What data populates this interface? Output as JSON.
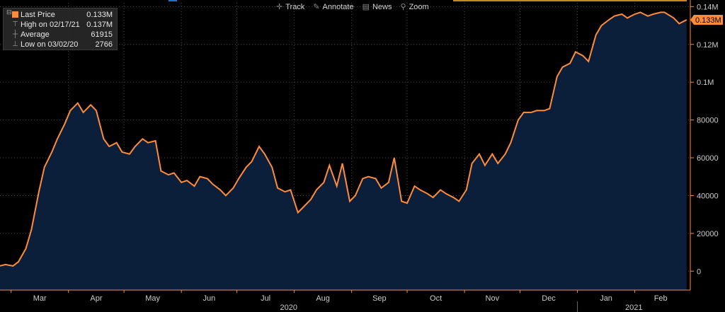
{
  "toolbar": {
    "track_label": "Track",
    "annotate_label": "Annotate",
    "news_label": "News",
    "zoom_label": "Zoom"
  },
  "legend": {
    "items": [
      {
        "label": "Last Price",
        "value": "0.133M"
      },
      {
        "label": "High on 02/17/21",
        "value": "0.137M"
      },
      {
        "label": "Average",
        "value": "61915"
      },
      {
        "label": "Low on 03/02/20",
        "value": "2766"
      }
    ]
  },
  "colors": {
    "line": "#ff8c3a",
    "fill": "#0b1f3a",
    "grid": "#4a4a4a",
    "axis_text": "#cccccc",
    "last_price_tag": "#ff8c3a",
    "background": "#000000"
  },
  "chart_data": {
    "type": "area",
    "title": "",
    "xlabel": "",
    "ylabel": "",
    "ylim": [
      -10000,
      142000
    ],
    "y_ticks": [
      {
        "value": 0,
        "label": "0"
      },
      {
        "value": 20000,
        "label": "20000"
      },
      {
        "value": 40000,
        "label": "40000"
      },
      {
        "value": 60000,
        "label": "60000"
      },
      {
        "value": 80000,
        "label": "80000"
      },
      {
        "value": 100000,
        "label": "0.1M"
      },
      {
        "value": 120000,
        "label": "0.12M"
      },
      {
        "value": 140000,
        "label": "0.14M"
      }
    ],
    "x_ticks": [
      "Mar",
      "Apr",
      "May",
      "Jun",
      "Jul",
      "Aug",
      "Sep",
      "Oct",
      "Nov",
      "Dec",
      "Jan",
      "Feb"
    ],
    "year_labels": [
      "2020",
      "2021"
    ],
    "last_price_label": "0.133M",
    "last_value": 133000,
    "series": [
      {
        "points": [
          [
            "2020-02-24",
            2800
          ],
          [
            "2020-02-27",
            3500
          ],
          [
            "2020-03-02",
            2766
          ],
          [
            "2020-03-05",
            5000
          ],
          [
            "2020-03-09",
            12000
          ],
          [
            "2020-03-12",
            22000
          ],
          [
            "2020-03-16",
            42000
          ],
          [
            "2020-03-19",
            55000
          ],
          [
            "2020-03-23",
            63000
          ],
          [
            "2020-03-26",
            70000
          ],
          [
            "2020-03-30",
            78000
          ],
          [
            "2020-04-02",
            85000
          ],
          [
            "2020-04-06",
            89000
          ],
          [
            "2020-04-09",
            84000
          ],
          [
            "2020-04-13",
            88000
          ],
          [
            "2020-04-16",
            85000
          ],
          [
            "2020-04-20",
            70000
          ],
          [
            "2020-04-23",
            66000
          ],
          [
            "2020-04-27",
            68000
          ],
          [
            "2020-04-30",
            63000
          ],
          [
            "2020-05-04",
            62000
          ],
          [
            "2020-05-07",
            66000
          ],
          [
            "2020-05-11",
            70000
          ],
          [
            "2020-05-14",
            68000
          ],
          [
            "2020-05-18",
            69000
          ],
          [
            "2020-05-21",
            53000
          ],
          [
            "2020-05-25",
            51000
          ],
          [
            "2020-05-28",
            52000
          ],
          [
            "2020-06-01",
            47000
          ],
          [
            "2020-06-04",
            48000
          ],
          [
            "2020-06-08",
            45000
          ],
          [
            "2020-06-11",
            50000
          ],
          [
            "2020-06-15",
            49000
          ],
          [
            "2020-06-18",
            46000
          ],
          [
            "2020-06-22",
            43000
          ],
          [
            "2020-06-25",
            40000
          ],
          [
            "2020-06-29",
            44000
          ],
          [
            "2020-07-02",
            49000
          ],
          [
            "2020-07-06",
            55000
          ],
          [
            "2020-07-09",
            58000
          ],
          [
            "2020-07-13",
            66000
          ],
          [
            "2020-07-16",
            62000
          ],
          [
            "2020-07-20",
            55000
          ],
          [
            "2020-07-23",
            44000
          ],
          [
            "2020-07-27",
            42000
          ],
          [
            "2020-07-30",
            43000
          ],
          [
            "2020-08-03",
            31000
          ],
          [
            "2020-08-06",
            34000
          ],
          [
            "2020-08-10",
            38000
          ],
          [
            "2020-08-13",
            43000
          ],
          [
            "2020-08-17",
            47000
          ],
          [
            "2020-08-20",
            56000
          ],
          [
            "2020-08-24",
            45000
          ],
          [
            "2020-08-27",
            57000
          ],
          [
            "2020-08-31",
            37000
          ],
          [
            "2020-09-03",
            40000
          ],
          [
            "2020-09-07",
            49000
          ],
          [
            "2020-09-10",
            50000
          ],
          [
            "2020-09-14",
            49000
          ],
          [
            "2020-09-17",
            44000
          ],
          [
            "2020-09-21",
            47000
          ],
          [
            "2020-09-24",
            60000
          ],
          [
            "2020-09-28",
            37000
          ],
          [
            "2020-10-01",
            36000
          ],
          [
            "2020-10-05",
            45000
          ],
          [
            "2020-10-08",
            43000
          ],
          [
            "2020-10-12",
            41000
          ],
          [
            "2020-10-15",
            39000
          ],
          [
            "2020-10-19",
            43000
          ],
          [
            "2020-10-22",
            41000
          ],
          [
            "2020-10-26",
            39000
          ],
          [
            "2020-10-29",
            37000
          ],
          [
            "2020-11-02",
            43000
          ],
          [
            "2020-11-05",
            57000
          ],
          [
            "2020-11-09",
            62000
          ],
          [
            "2020-11-12",
            56000
          ],
          [
            "2020-11-16",
            62000
          ],
          [
            "2020-11-19",
            57000
          ],
          [
            "2020-11-23",
            62000
          ],
          [
            "2020-11-26",
            68000
          ],
          [
            "2020-11-30",
            80000
          ],
          [
            "2020-12-03",
            84000
          ],
          [
            "2020-12-07",
            84000
          ],
          [
            "2020-12-10",
            85000
          ],
          [
            "2020-12-14",
            85000
          ],
          [
            "2020-12-17",
            86000
          ],
          [
            "2020-12-21",
            103000
          ],
          [
            "2020-12-24",
            108000
          ],
          [
            "2020-12-28",
            110000
          ],
          [
            "2020-12-31",
            116000
          ],
          [
            "2021-01-04",
            114000
          ],
          [
            "2021-01-07",
            111000
          ],
          [
            "2021-01-11",
            125000
          ],
          [
            "2021-01-14",
            130000
          ],
          [
            "2021-01-18",
            133000
          ],
          [
            "2021-01-21",
            135000
          ],
          [
            "2021-01-25",
            136000
          ],
          [
            "2021-01-28",
            134000
          ],
          [
            "2021-02-01",
            136000
          ],
          [
            "2021-02-04",
            137000
          ],
          [
            "2021-02-08",
            135000
          ],
          [
            "2021-02-11",
            136000
          ],
          [
            "2021-02-15",
            137000
          ],
          [
            "2021-02-17",
            137000
          ],
          [
            "2021-02-22",
            134000
          ],
          [
            "2021-02-25",
            131000
          ],
          [
            "2021-03-01",
            133000
          ]
        ]
      }
    ]
  }
}
